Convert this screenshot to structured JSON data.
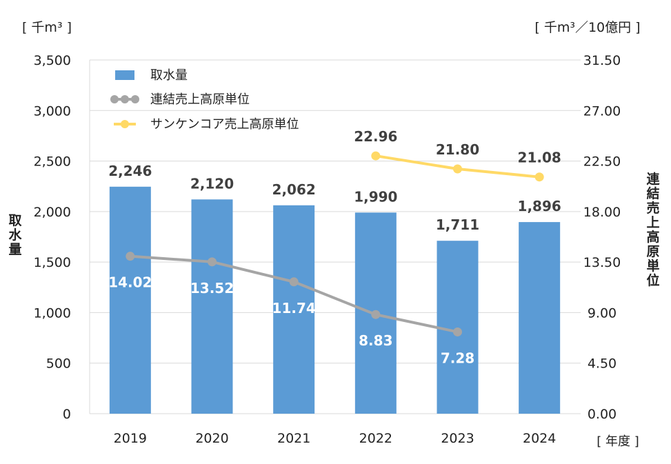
{
  "chart_data": {
    "type": "bar+line",
    "categories": [
      "2019",
      "2020",
      "2021",
      "2022",
      "2023",
      "2024"
    ],
    "left_axis": {
      "label": "取水量",
      "unit": "[ 千m³ ]",
      "ylim": [
        0,
        3500
      ],
      "ticks": [
        0,
        500,
        1000,
        1500,
        2000,
        2500,
        3000,
        3500
      ],
      "tick_labels": [
        "0",
        "500",
        "1,000",
        "1,500",
        "2,000",
        "2,500",
        "3,000",
        "3,500"
      ]
    },
    "right_axis": {
      "label": "連結売上高原単位",
      "unit": "[ 千m³／10億円 ]",
      "ylim": [
        0,
        31.5
      ],
      "ticks": [
        0,
        4.5,
        9,
        13.5,
        18,
        22.5,
        27,
        31.5
      ],
      "tick_labels": [
        "0.00",
        "4.50",
        "9.00",
        "13.50",
        "18.00",
        "22.50",
        "27.00",
        "31.50"
      ]
    },
    "x_unit": "[ 年度 ]",
    "grid": true,
    "legend_position": "top-left",
    "series": [
      {
        "name": "取水量",
        "type": "bar",
        "axis": "left",
        "color": "#5B9BD5",
        "values": [
          2246,
          2120,
          2062,
          1990,
          1711,
          1896
        ],
        "labels": [
          "2,246",
          "2,120",
          "2,062",
          "1,990",
          "1,711",
          "1,896"
        ]
      },
      {
        "name": "連結売上高原単位",
        "type": "line",
        "axis": "right",
        "color": "#A5A5A5",
        "values": [
          14.02,
          13.52,
          11.74,
          8.83,
          7.28,
          null
        ],
        "labels": [
          "14.02",
          "13.52",
          "11.74",
          "8.83",
          "7.28",
          ""
        ]
      },
      {
        "name": "サンケンコア売上高原単位",
        "type": "line",
        "axis": "right",
        "color": "#FFD966",
        "values": [
          null,
          null,
          null,
          22.96,
          21.8,
          21.08
        ],
        "labels": [
          "",
          "",
          "",
          "22.96",
          "21.80",
          "21.08"
        ]
      }
    ]
  }
}
